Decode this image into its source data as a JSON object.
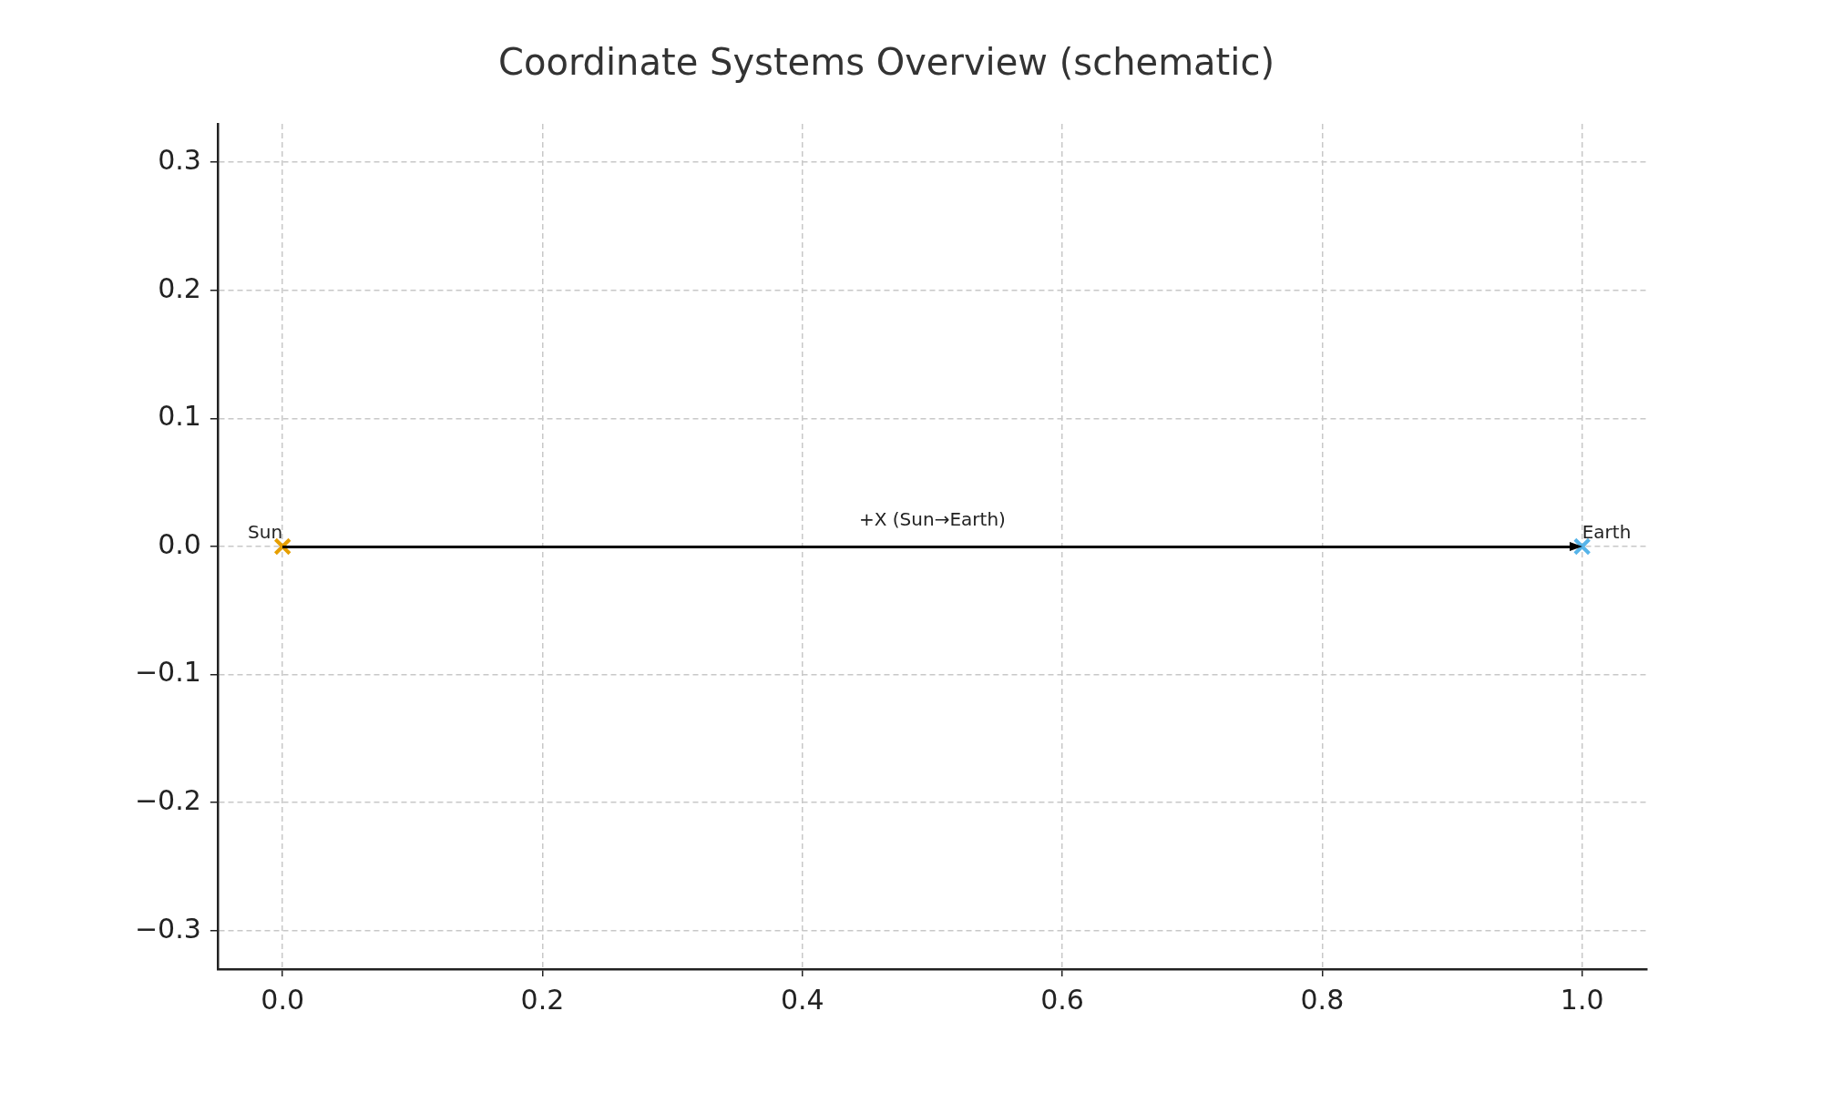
{
  "chart_data": {
    "type": "scatter",
    "title": "Coordinate Systems Overview (schematic)",
    "series": [
      {
        "name": "Sun",
        "color": "#e69f00",
        "x": [
          0
        ],
        "values": [
          0
        ]
      },
      {
        "name": "Earth",
        "color": "#56b4e9",
        "x": [
          1
        ],
        "values": [
          0
        ]
      }
    ],
    "marker": "cross",
    "legend": false,
    "grid": true,
    "annotations": [
      "+X (Sun→Earth)"
    ],
    "xlim": [
      -0.05,
      1.05
    ],
    "ylim": [
      -0.33,
      0.33
    ],
    "xticks": [
      {
        "value": 0,
        "label": "0.0"
      },
      {
        "value": 0.2,
        "label": "0.2"
      },
      {
        "value": 0.4,
        "label": "0.4"
      },
      {
        "value": 0.6,
        "label": "0.6"
      },
      {
        "value": 0.8,
        "label": "0.8"
      },
      {
        "value": 1,
        "label": "1.0"
      }
    ],
    "yticks": [
      {
        "value": -0.3,
        "label": "−0.3"
      },
      {
        "value": -0.2,
        "label": "−0.2"
      },
      {
        "value": -0.1,
        "label": "−0.1"
      },
      {
        "value": 0,
        "label": "0.0"
      },
      {
        "value": 0.1,
        "label": "0.1"
      },
      {
        "value": 0.2,
        "label": "0.2"
      },
      {
        "value": 0.3,
        "label": "0.3"
      }
    ]
  }
}
